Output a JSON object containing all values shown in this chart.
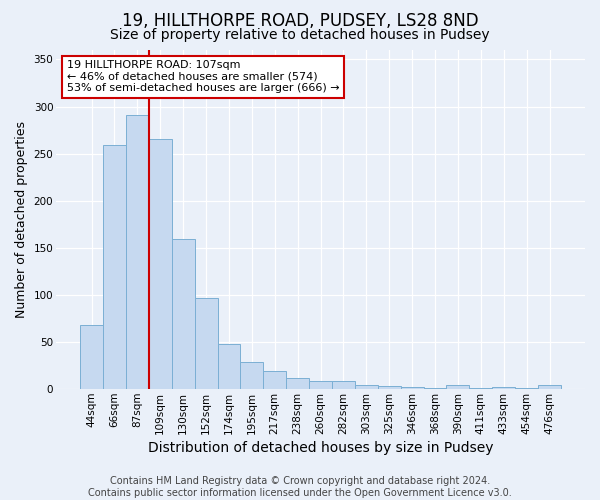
{
  "title1": "19, HILLTHORPE ROAD, PUDSEY, LS28 8ND",
  "title2": "Size of property relative to detached houses in Pudsey",
  "xlabel": "Distribution of detached houses by size in Pudsey",
  "ylabel": "Number of detached properties",
  "annotation_line1": "19 HILLTHORPE ROAD: 107sqm",
  "annotation_line2": "← 46% of detached houses are smaller (574)",
  "annotation_line3": "53% of semi-detached houses are larger (666) →",
  "categories": [
    "44sqm",
    "66sqm",
    "87sqm",
    "109sqm",
    "130sqm",
    "152sqm",
    "174sqm",
    "195sqm",
    "217sqm",
    "238sqm",
    "260sqm",
    "282sqm",
    "303sqm",
    "325sqm",
    "346sqm",
    "368sqm",
    "390sqm",
    "411sqm",
    "433sqm",
    "454sqm",
    "476sqm"
  ],
  "values": [
    68,
    259,
    291,
    265,
    159,
    97,
    48,
    29,
    19,
    12,
    9,
    9,
    4,
    3,
    2,
    1,
    4,
    1,
    2,
    1,
    4
  ],
  "bar_color": "#c6d9f0",
  "bar_edge_color": "#7bafd4",
  "vline_x": 2.5,
  "vline_color": "#cc0000",
  "background_color": "#eaf0f9",
  "grid_color": "#ffffff",
  "annotation_box_color": "#ffffff",
  "annotation_box_edge": "#cc0000",
  "footer": "Contains HM Land Registry data © Crown copyright and database right 2024.\nContains public sector information licensed under the Open Government Licence v3.0.",
  "ylim": [
    0,
    360
  ],
  "title1_fontsize": 12,
  "title2_fontsize": 10,
  "xlabel_fontsize": 10,
  "ylabel_fontsize": 9,
  "tick_fontsize": 7.5,
  "annotation_fontsize": 8,
  "footer_fontsize": 7
}
